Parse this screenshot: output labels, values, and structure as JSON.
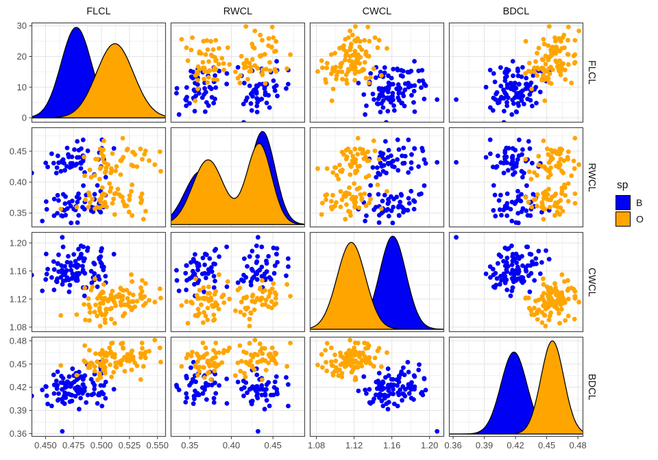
{
  "figure": {
    "column_strips": [
      "FLCL",
      "RWCL",
      "CWCL",
      "BDCL"
    ],
    "row_strips": [
      "FLCL",
      "RWCL",
      "CWCL",
      "BDCL"
    ],
    "legend": {
      "title": "sp",
      "entries": [
        {
          "label": "B",
          "color": "#0000f5"
        },
        {
          "label": "O",
          "color": "#ffa500"
        }
      ]
    }
  },
  "chart_data": {
    "type": "scatter",
    "subtype": "scatterplot-matrix",
    "matrix": {
      "n_rows": 4,
      "n_cols": 4,
      "diagonal": "density",
      "off_diagonal": "points"
    },
    "title": "",
    "legend_title": "sp",
    "legend_position": "right",
    "grid": "on",
    "variables": [
      {
        "name": "FLCL",
        "domain": [
          0.4375,
          0.5575
        ],
        "ticks": [
          {
            "v": 0.45,
            "label": "0.450"
          },
          {
            "v": 0.475,
            "label": "0.475"
          },
          {
            "v": 0.5,
            "label": "0.500"
          },
          {
            "v": 0.525,
            "label": "0.525"
          },
          {
            "v": 0.55,
            "label": "0.550"
          }
        ],
        "minor": [
          0.4625,
          0.4875,
          0.5125,
          0.5375
        ]
      },
      {
        "name": "RWCL",
        "domain": [
          0.327,
          0.4886
        ],
        "ticks": [
          {
            "v": 0.35,
            "label": "0.35"
          },
          {
            "v": 0.4,
            "label": "0.40"
          },
          {
            "v": 0.45,
            "label": "0.45"
          }
        ],
        "minor": [
          0.375,
          0.425,
          0.475
        ]
      },
      {
        "name": "CWCL",
        "domain": [
          1.073,
          1.2155
        ],
        "ticks": [
          {
            "v": 1.08,
            "label": "1.08"
          },
          {
            "v": 1.12,
            "label": "1.12"
          },
          {
            "v": 1.16,
            "label": "1.16"
          },
          {
            "v": 1.2,
            "label": "1.20"
          }
        ],
        "minor": [
          1.1,
          1.14,
          1.18
        ]
      },
      {
        "name": "BDCL",
        "domain": [
          0.356,
          0.4852
        ],
        "ticks": [
          {
            "v": 0.36,
            "label": "0.36"
          },
          {
            "v": 0.39,
            "label": "0.39"
          },
          {
            "v": 0.42,
            "label": "0.42"
          },
          {
            "v": 0.45,
            "label": "0.45"
          },
          {
            "v": 0.48,
            "label": "0.48"
          }
        ],
        "minor": [
          0.375,
          0.405,
          0.435,
          0.465
        ]
      }
    ],
    "density_axis": {
      "domain": [
        -1.55,
        31.05
      ],
      "ticks": [
        {
          "v": 0,
          "label": "0"
        },
        {
          "v": 10,
          "label": "10"
        },
        {
          "v": 20,
          "label": "20"
        },
        {
          "v": 30,
          "label": "30"
        }
      ],
      "minor": [
        5,
        15,
        25
      ]
    },
    "groups": [
      {
        "name": "B",
        "color": "#0000f5",
        "n": 100,
        "scatter": {
          "FLCL": {
            "m": 0.4775,
            "s": 0.0135
          },
          "RWCL": {
            "sex_means": [
              0.363,
              0.4375
            ],
            "s": 0.0145
          },
          "CWCL": {
            "m": 1.161,
            "s": 0.0145
          },
          "BDCL": {
            "m": 0.4185,
            "s": 0.012
          }
        },
        "density": {
          "FLCL": [
            {
              "w": 1,
              "m": 0.4775,
              "s": 0.01352
            }
          ],
          "RWCL": [
            {
              "w": 0.42,
              "m": 0.363,
              "s": 0.019
            },
            {
              "w": 0.58,
              "m": 0.4375,
              "s": 0.015
            }
          ],
          "CWCL": [
            {
              "w": 1,
              "m": 1.161,
              "s": 0.014
            }
          ],
          "BDCL": [
            {
              "w": 1,
              "m": 0.4185,
              "s": 0.0125
            }
          ]
        }
      },
      {
        "name": "O",
        "color": "#ffa500",
        "n": 100,
        "scatter": {
          "FLCL": {
            "m": 0.5125,
            "s": 0.016
          },
          "RWCL": {
            "sex_means": [
              0.372,
              0.4335
            ],
            "s": 0.0155
          },
          "CWCL": {
            "m": 1.117,
            "s": 0.015
          },
          "BDCL": {
            "m": 0.4555,
            "s": 0.0115
          }
        },
        "density": {
          "FLCL": [
            {
              "w": 1,
              "m": 0.512,
              "s": 0.0165
            }
          ],
          "RWCL": [
            {
              "w": 0.5,
              "m": 0.372,
              "s": 0.0186
            },
            {
              "w": 0.5,
              "m": 0.4335,
              "s": 0.0149
            }
          ],
          "CWCL": [
            {
              "w": 1,
              "m": 1.117,
              "s": 0.015
            }
          ],
          "BDCL": [
            {
              "w": 1,
              "m": 0.4555,
              "s": 0.011
            }
          ]
        }
      }
    ],
    "outlier_points": [
      {
        "group": "B",
        "FLCL": 0.465,
        "RWCL": 0.432,
        "CWCL": 1.208,
        "BDCL": 0.363
      }
    ],
    "style": {
      "point_radius": 3.4,
      "density_stroke": "#000000",
      "density_stroke_width": 1.3,
      "grid_major": "#e3e3e3",
      "grid_minor": "#f0f0f0",
      "panel_bg": "#ffffff",
      "panel_border": "#4a4a4a",
      "axis_text_color": "#4d4d4d",
      "axis_font_size": 13,
      "tick_color": "#333333"
    },
    "seed": 11
  }
}
